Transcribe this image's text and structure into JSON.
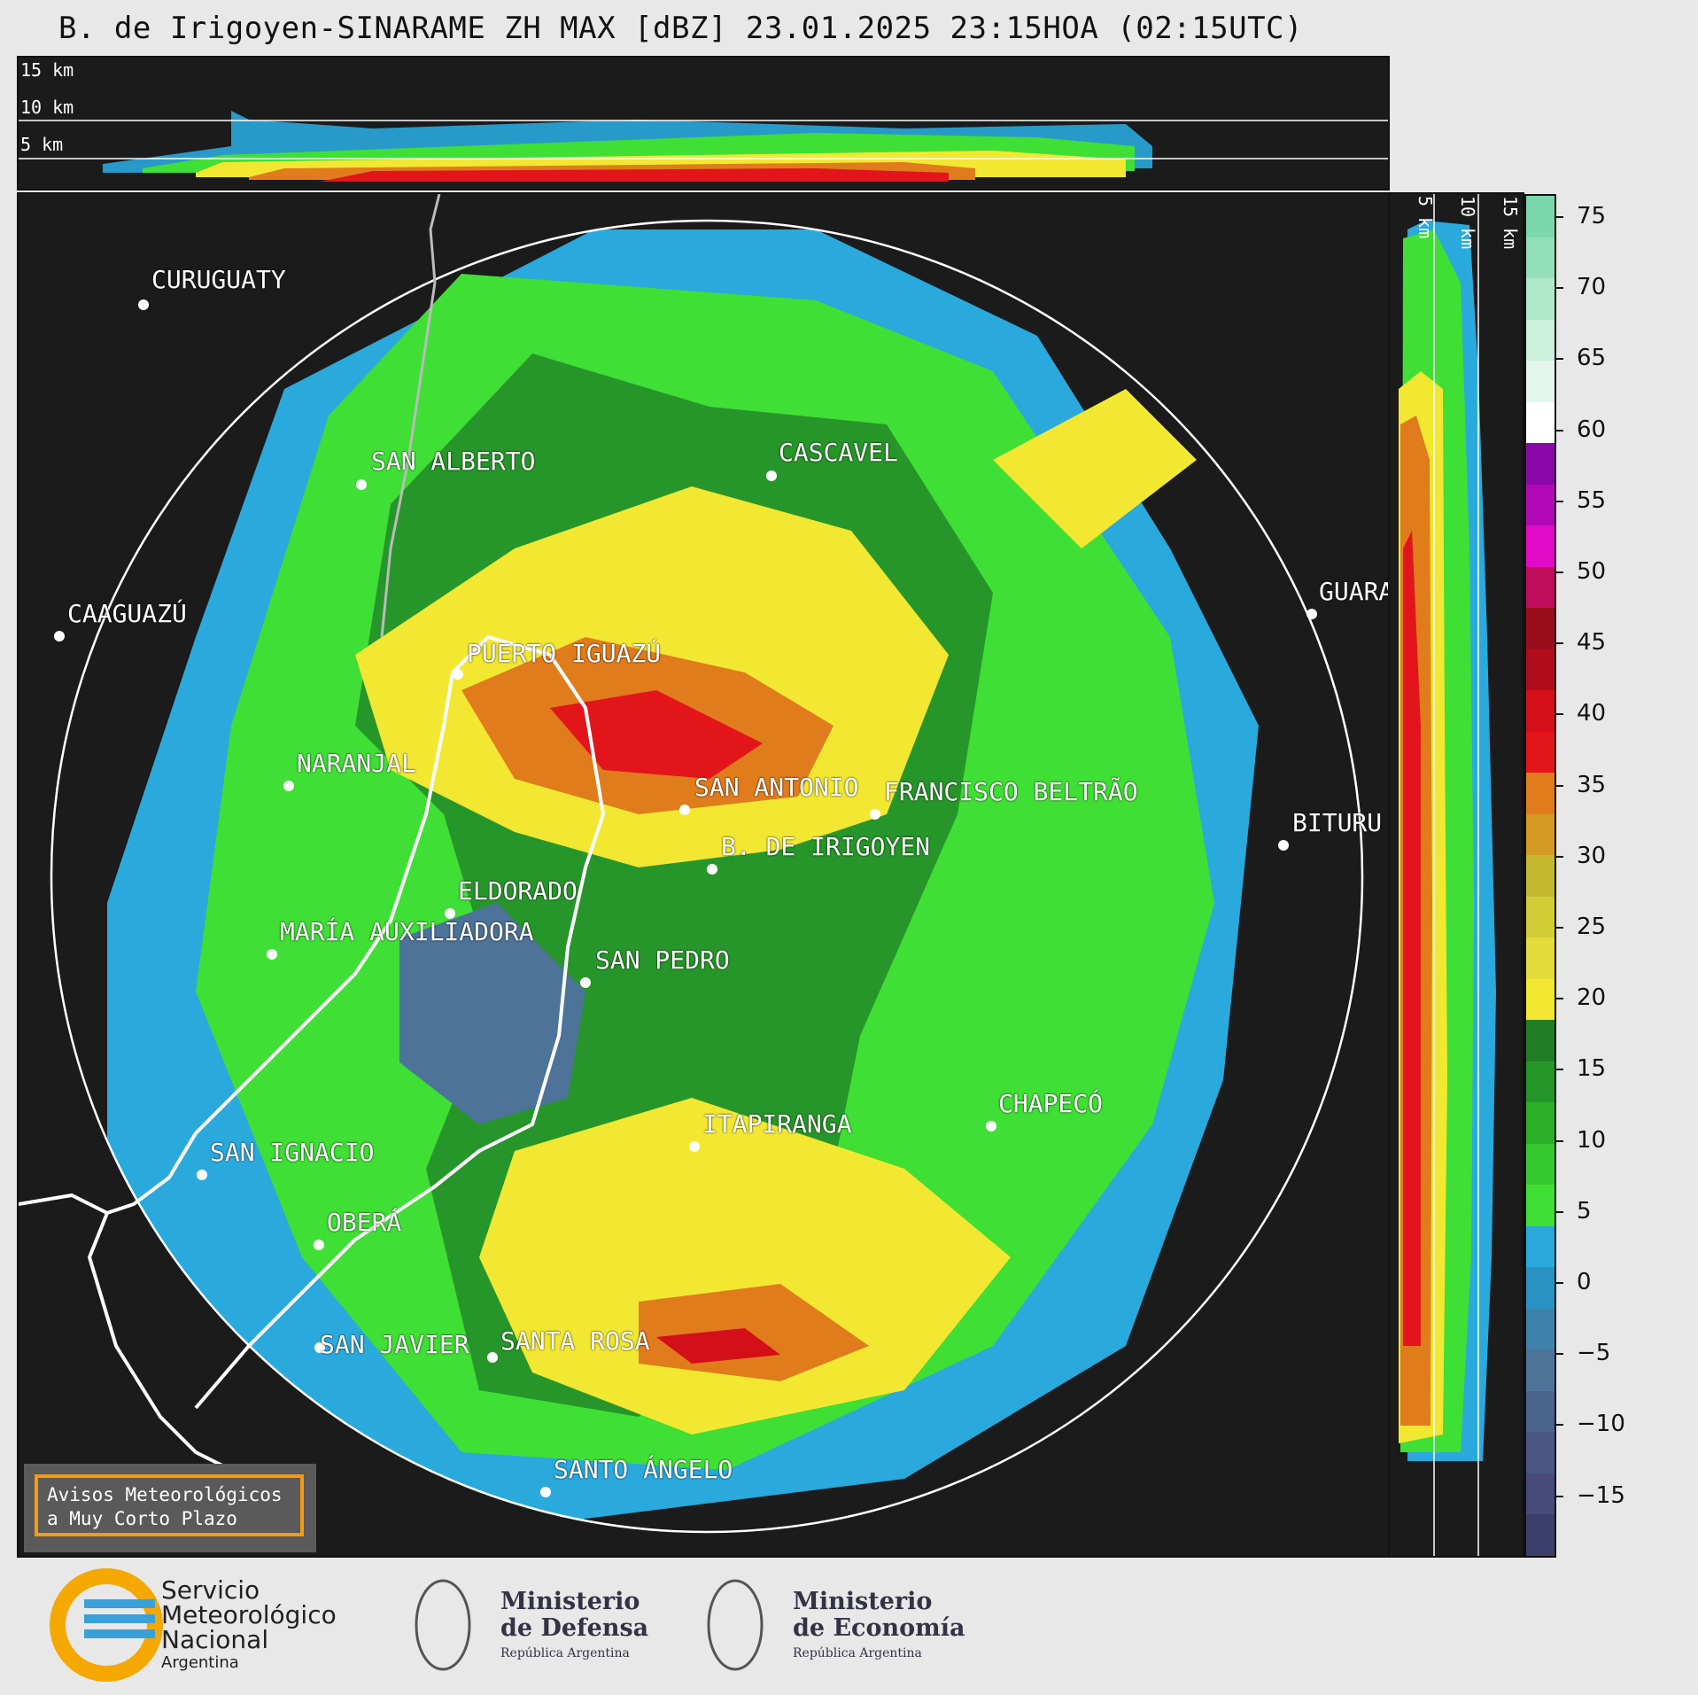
{
  "header": {
    "title": "B. de Irigoyen-SINARAME ZH MAX [dBZ] 23.01.2025 23:15HOA (02:15UTC)"
  },
  "top_strip": {
    "km_labels": [
      "15 km",
      "10 km",
      "5 km"
    ]
  },
  "side_strip": {
    "km_labels": [
      "5 km",
      "10 km",
      "15 km"
    ]
  },
  "colorbar": {
    "ticks": [
      "75",
      "70",
      "65",
      "60",
      "55",
      "50",
      "45",
      "40",
      "35",
      "30",
      "25",
      "20",
      "15",
      "10",
      "5",
      "0",
      "−5",
      "−10",
      "−15"
    ],
    "colors": [
      "#3d3f6b",
      "#474a7a",
      "#4a5683",
      "#4b648e",
      "#4d7399",
      "#3e82ac",
      "#2a93c4",
      "#2aa9dd",
      "#3fdf35",
      "#36c92e",
      "#2cb02a",
      "#27962a",
      "#217d23",
      "#f2e832",
      "#e3dc3a",
      "#d3cd35",
      "#c4b82e",
      "#d69a23",
      "#e07c1c",
      "#e2151b",
      "#d30f1a",
      "#b10d1c",
      "#9c0d1c",
      "#c00c5d",
      "#e00ac8",
      "#b208b6",
      "#8a08a8",
      "#ffffff",
      "#e4f7ec",
      "#cbf0dc",
      "#b0e8cc",
      "#93dfbb",
      "#7bd8ae"
    ]
  },
  "map": {
    "cities": [
      {
        "name": "CURUGUATY"
      },
      {
        "name": "SAN ALBERTO"
      },
      {
        "name": "CASCAVEL"
      },
      {
        "name": "CAAGUAZÚ"
      },
      {
        "name": "GUARA"
      },
      {
        "name": "PUERTO IGUAZÚ"
      },
      {
        "name": "NARANJAL"
      },
      {
        "name": "SAN ANTONIO"
      },
      {
        "name": "FRANCISCO BELTRÃO"
      },
      {
        "name": "BITURU"
      },
      {
        "name": "B. DE IRIGOYEN"
      },
      {
        "name": "ELDORADO"
      },
      {
        "name": "MARÍA AUXILIADORA"
      },
      {
        "name": "SAN PEDRO"
      },
      {
        "name": "CHAPECÓ"
      },
      {
        "name": "ITAPIRANGA"
      },
      {
        "name": "SAN IGNACIO"
      },
      {
        "name": "OBERÁ"
      },
      {
        "name": "SAN JAVIER"
      },
      {
        "name": "SANTA ROSA"
      },
      {
        "name": "SANTO ÁNGELO"
      }
    ],
    "warning": {
      "line1": "Avisos Meteorológicos",
      "line2": "a Muy Corto Plazo"
    }
  },
  "footer": {
    "smn": [
      "Servicio",
      "Meteorológico",
      "Nacional",
      "Argentina"
    ],
    "defensa": [
      "Ministerio",
      "de Defensa",
      "República Argentina"
    ],
    "economia": [
      "Ministerio",
      "de Economía",
      "República Argentina"
    ]
  }
}
